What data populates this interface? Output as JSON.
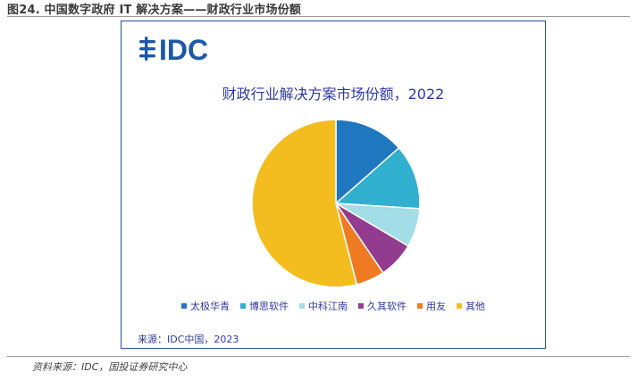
{
  "figure_title": "图24. 中国数字政府 IT 解决方案——财政行业市场份额",
  "logo_text": "IDC",
  "source_inner": "来源：IDC中国，2023",
  "footnote": "资料来源：IDC，国投证券研究中心",
  "colors": {
    "frame": "#2b4f9c",
    "logo": "#1e57a8",
    "title_text": "#2d3aa0"
  },
  "chart_data": {
    "type": "pie",
    "title": "财政行业解决方案市场份额，2022",
    "legend_position": "bottom",
    "categories": [
      "太极华青",
      "博思软件",
      "中科江南",
      "久其软件",
      "用友",
      "其他"
    ],
    "values": [
      13.5,
      12.5,
      7.5,
      7.0,
      5.5,
      54.0
    ],
    "unit": "%",
    "colors": [
      "#1f77c0",
      "#31afcf",
      "#a3dde8",
      "#933b8f",
      "#f07a22",
      "#f3bd1f"
    ]
  }
}
